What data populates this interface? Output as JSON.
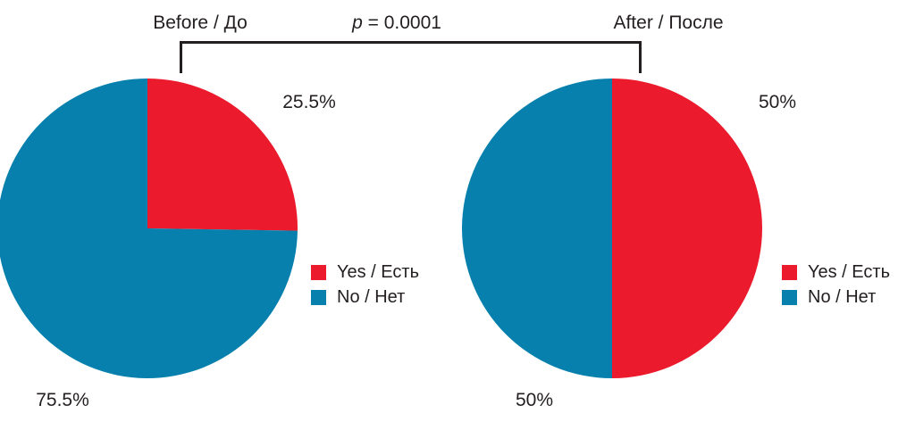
{
  "chart_data": [
    {
      "type": "pie",
      "title": "Before / До",
      "labels": [
        "Yes / Есть",
        "No / Нет"
      ],
      "values": [
        25.5,
        75.5
      ],
      "value_labels": [
        "25.5%",
        "75.5%"
      ],
      "colors": [
        "#EB1B2D",
        "#0780AD"
      ],
      "start_angle": "top",
      "direction": "clockwise",
      "legend_position": "right"
    },
    {
      "type": "pie",
      "title": "After / После",
      "labels": [
        "Yes / Есть",
        "No / Нет"
      ],
      "values": [
        50,
        50
      ],
      "value_labels": [
        "50%",
        "50%"
      ],
      "colors": [
        "#EB1B2D",
        "#0780AD"
      ],
      "start_angle": "top",
      "direction": "clockwise",
      "legend_position": "right"
    }
  ],
  "comparison": {
    "p_symbol": "p",
    "p_rest": " = 0.0001",
    "p_label": "p = 0.0001",
    "p_value": 0.0001
  },
  "style": {
    "yes_color": "#EB1B2D",
    "no_color": "#0780AD",
    "text_color": "#231F20",
    "bracket_color": "#231F20"
  }
}
